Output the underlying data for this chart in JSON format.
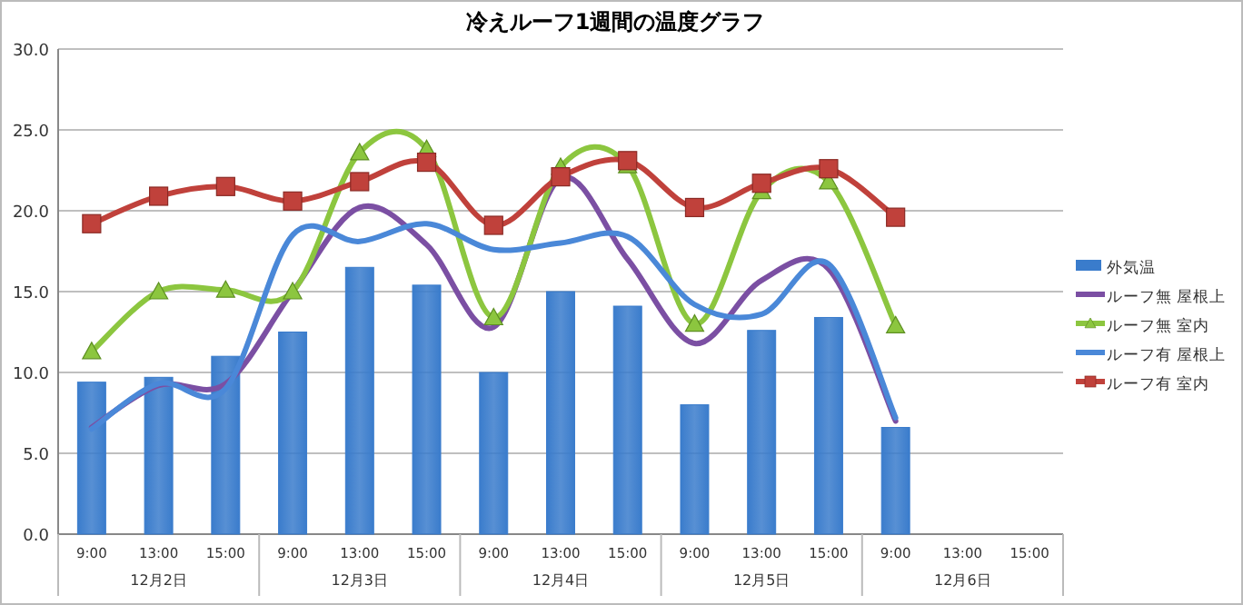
{
  "chart_data": {
    "type": "bar",
    "title": "冷えルーフ1週間の温度グラフ",
    "categories": [
      "9:00",
      "13:00",
      "15:00",
      "9:00",
      "13:00",
      "15:00",
      "9:00",
      "13:00",
      "15:00",
      "9:00",
      "13:00",
      "15:00",
      "9:00",
      "13:00",
      "15:00"
    ],
    "annotations": [
      "12月2日",
      "12月3日",
      "12月4日",
      "12月5日",
      "12月6日"
    ],
    "series": [
      {
        "name": "外気温",
        "color": "#3a7ccc",
        "values": [
          9.4,
          9.7,
          11.0,
          12.5,
          16.5,
          15.4,
          10.0,
          15.0,
          14.1,
          8.0,
          12.6,
          13.4,
          6.6,
          null,
          null
        ]
      },
      {
        "name": "ルーフ無  屋根上",
        "type": "line",
        "color": "#7b4fa3",
        "marker": "none",
        "values": [
          6.6,
          9.2,
          9.3,
          15.0,
          20.2,
          17.9,
          12.8,
          22.0,
          17.0,
          11.8,
          15.7,
          16.4,
          7.0,
          null,
          null
        ]
      },
      {
        "name": "ルーフ無  室内",
        "type": "line",
        "color": "#8cc63f",
        "marker": "triangle",
        "values": [
          11.3,
          15.0,
          15.1,
          15.0,
          23.6,
          23.8,
          13.4,
          22.7,
          22.8,
          13.0,
          21.2,
          21.8,
          12.9,
          null,
          null
        ]
      },
      {
        "name": "ルーフ有  屋根上",
        "type": "line",
        "color": "#4a88d8",
        "marker": "none",
        "values": [
          6.5,
          9.3,
          9.0,
          18.5,
          18.1,
          19.2,
          17.6,
          18.0,
          18.4,
          14.2,
          13.6,
          16.7,
          7.2,
          null,
          null
        ]
      },
      {
        "name": "ルーフ有  室内",
        "type": "line",
        "color": "#c0413b",
        "marker": "square",
        "values": [
          19.2,
          20.9,
          21.5,
          20.6,
          21.8,
          23.0,
          19.1,
          22.1,
          23.1,
          20.2,
          21.7,
          22.6,
          19.6,
          null,
          null
        ]
      }
    ],
    "ylim": [
      0,
      30
    ],
    "yticks": [
      {
        "value": 0,
        "label": "0.0"
      },
      {
        "value": 5,
        "label": "5.0"
      },
      {
        "value": 10,
        "label": "10.0"
      },
      {
        "value": 15,
        "label": "15.0"
      },
      {
        "value": 20,
        "label": "20.0"
      },
      {
        "value": 25,
        "label": "25.0"
      },
      {
        "value": 30,
        "label": "30.0"
      }
    ],
    "grid": "y",
    "legend": "right"
  }
}
